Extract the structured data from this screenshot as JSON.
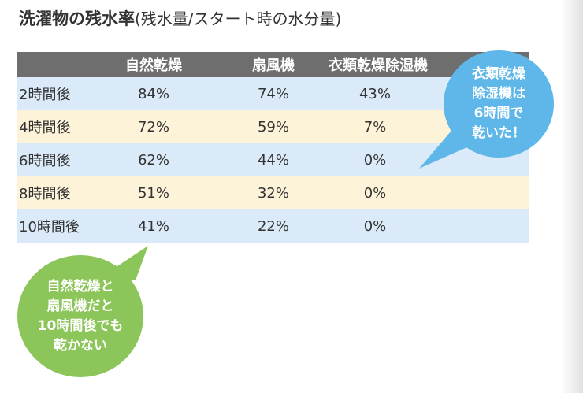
{
  "title": {
    "main": "洗濯物の残水率",
    "sub": "(残水量/スタート時の水分量)"
  },
  "table": {
    "headers": [
      "自然乾燥",
      "扇風機",
      "衣類乾燥除湿機"
    ],
    "rows": [
      {
        "label": "2時間後",
        "values": [
          "84%",
          "74%",
          "43%"
        ]
      },
      {
        "label": "4時間後",
        "values": [
          "72%",
          "59%",
          "7%"
        ]
      },
      {
        "label": "6時間後",
        "values": [
          "62%",
          "44%",
          "0%"
        ]
      },
      {
        "label": "8時間後",
        "values": [
          "51%",
          "32%",
          "0%"
        ]
      },
      {
        "label": "10時間後",
        "values": [
          "41%",
          "22%",
          "0%"
        ]
      }
    ],
    "colors": {
      "header": "#6e6e6e",
      "row_blue": "#dbeaf8",
      "row_cream": "#fdf3d9"
    }
  },
  "callouts": {
    "dehumidifier": {
      "lines": [
        "衣類乾燥",
        "除湿機は",
        "6時間で",
        "乾いた！"
      ],
      "color": "#5eb7e8"
    },
    "natural": {
      "lines": [
        "自然乾燥と",
        "扇風機だと",
        "10時間後でも",
        "乾かない"
      ],
      "color": "#8cc559"
    }
  }
}
